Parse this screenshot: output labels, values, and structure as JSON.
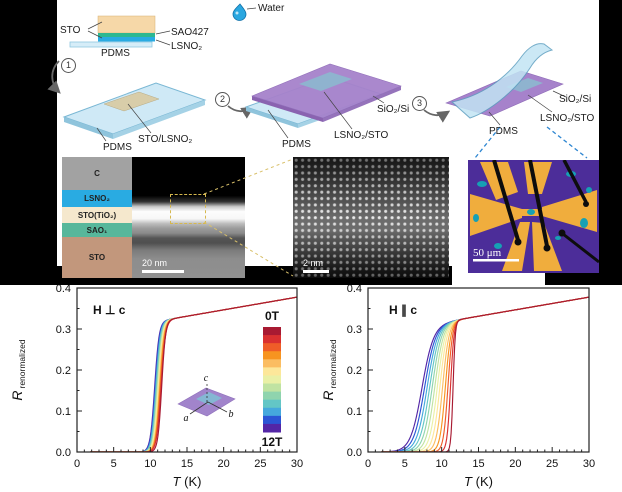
{
  "schematic": {
    "water_label": "Water",
    "stack": {
      "sto_label": "STO",
      "sao_label": "SAO427",
      "lsno_label": "LSNO₂",
      "pdms_label": "PDMS"
    },
    "steps": [
      {
        "number": "1"
      },
      {
        "number": "2"
      },
      {
        "number": "3"
      }
    ],
    "panel1": {
      "pdms": "PDMS",
      "film": "STO/LSNO₂"
    },
    "panel2": {
      "pdms": "PDMS",
      "film": "LSNO₂/STO",
      "substrate": "SiO₂/Si"
    },
    "panel3": {
      "pdms": "PDMS",
      "film": "LSNO₂/STO",
      "substrate": "SiO₂/Si"
    }
  },
  "micrographs": {
    "layer_labels": [
      {
        "label": "C",
        "color": "#a2a2a2"
      },
      {
        "label": "LSNO₂",
        "color": "#29abe2"
      },
      {
        "label": "STO(TiO₂)",
        "color": "#f5e8cd"
      },
      {
        "label": "SAO₁",
        "color": "#57b79b"
      },
      {
        "label": "STO",
        "color": "#c2977c"
      }
    ],
    "scalebar_left": "20 nm",
    "scalebar_mid": "2 nm",
    "scalebar_right": "50 μm"
  },
  "chart_data": [
    {
      "type": "line",
      "annotation": "H ⊥ c",
      "xlabel_main": "T",
      "xlabel_rest": " (K)",
      "ylabel_main": "R",
      "ylabel_sub": "renormalized",
      "xlim": [
        0,
        30
      ],
      "ylim": [
        0,
        0.4
      ],
      "xticks": [
        0,
        5,
        10,
        15,
        20,
        25,
        30
      ],
      "yticks": [
        0,
        0.1,
        0.2,
        0.3,
        0.4
      ],
      "normal_state": {
        "r13": 0.325,
        "slope": 0.0031
      },
      "colorbar": {
        "top_label": "0T",
        "bottom_label": "12T",
        "colors": [
          "#a81a32",
          "#d93030",
          "#ef5d28",
          "#f79420",
          "#fbbd62",
          "#fde79a",
          "#eaf0a6",
          "#c0e3a2",
          "#8fd4ae",
          "#63c6c6",
          "#45a8dd",
          "#2b55d5",
          "#5326a6"
        ]
      },
      "inset": {
        "labels": [
          "a",
          "b",
          "c"
        ]
      },
      "series": [
        {
          "name": "0T",
          "tc": 11.55,
          "w": 0.26,
          "color": "#a81a32"
        },
        {
          "name": "1T",
          "tc": 11.47,
          "w": 0.3,
          "color": "#d93030"
        },
        {
          "name": "2T",
          "tc": 11.39,
          "w": 0.3,
          "color": "#ef5d28"
        },
        {
          "name": "3T",
          "tc": 11.31,
          "w": 0.3,
          "color": "#f79420"
        },
        {
          "name": "4T",
          "tc": 11.23,
          "w": 0.3,
          "color": "#fbbd62"
        },
        {
          "name": "5T",
          "tc": 11.15,
          "w": 0.3,
          "color": "#fde79a"
        },
        {
          "name": "6T",
          "tc": 11.07,
          "w": 0.3,
          "color": "#eaf0a6"
        },
        {
          "name": "7T",
          "tc": 10.99,
          "w": 0.3,
          "color": "#c0e3a2"
        },
        {
          "name": "8T",
          "tc": 10.91,
          "w": 0.3,
          "color": "#8fd4ae"
        },
        {
          "name": "9T",
          "tc": 10.83,
          "w": 0.3,
          "color": "#63c6c6"
        },
        {
          "name": "10T",
          "tc": 10.75,
          "w": 0.3,
          "color": "#45a8dd"
        },
        {
          "name": "11T",
          "tc": 10.67,
          "w": 0.3,
          "color": "#2b55d5"
        },
        {
          "name": "12T",
          "tc": 10.59,
          "w": 0.3,
          "color": "#5326a6"
        }
      ]
    },
    {
      "type": "line",
      "annotation": "H ∥ c",
      "xlabel_main": "T",
      "xlabel_rest": " (K)",
      "ylabel_main": "R",
      "ylabel_sub": "renormalized",
      "xlim": [
        0,
        30
      ],
      "ylim": [
        0,
        0.4
      ],
      "xticks": [
        0,
        5,
        10,
        15,
        20,
        25,
        30
      ],
      "yticks": [
        0,
        0.1,
        0.2,
        0.3,
        0.4
      ],
      "normal_state": {
        "r13": 0.325,
        "slope": 0.0031
      },
      "series": [
        {
          "name": "0T",
          "tc": 11.55,
          "w": 0.15,
          "color": "#a81a32"
        },
        {
          "name": "1T",
          "tc": 11.2,
          "w": 0.24,
          "color": "#d93030"
        },
        {
          "name": "2T",
          "tc": 10.85,
          "w": 0.31,
          "color": "#ef5d28"
        },
        {
          "name": "3T",
          "tc": 10.5,
          "w": 0.37,
          "color": "#f79420"
        },
        {
          "name": "4T",
          "tc": 10.12,
          "w": 0.43,
          "color": "#fbbd62"
        },
        {
          "name": "5T",
          "tc": 9.75,
          "w": 0.48,
          "color": "#fde79a"
        },
        {
          "name": "6T",
          "tc": 9.4,
          "w": 0.53,
          "color": "#eaf0a6"
        },
        {
          "name": "7T",
          "tc": 9.05,
          "w": 0.58,
          "color": "#c0e3a2"
        },
        {
          "name": "8T",
          "tc": 8.7,
          "w": 0.62,
          "color": "#8fd4ae"
        },
        {
          "name": "9T",
          "tc": 8.35,
          "w": 0.66,
          "color": "#63c6c6"
        },
        {
          "name": "10T",
          "tc": 8.0,
          "w": 0.7,
          "color": "#45a8dd"
        },
        {
          "name": "11T",
          "tc": 7.65,
          "w": 0.74,
          "color": "#2b55d5"
        },
        {
          "name": "12T",
          "tc": 7.3,
          "w": 0.78,
          "color": "#5326a6"
        }
      ]
    }
  ]
}
